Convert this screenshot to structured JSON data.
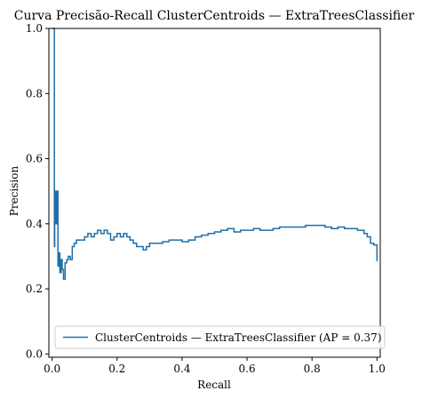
{
  "chart_data": {
    "type": "line",
    "title": "Curva Precisão-Recall ClusterCentroids — ExtraTreesClassifier",
    "xlabel": "Recall",
    "ylabel": "Precision",
    "xlim": [
      -0.01,
      1.01
    ],
    "ylim": [
      -0.01,
      1.0
    ],
    "xticks": [
      "0.0",
      "0.2",
      "0.4",
      "0.6",
      "0.8",
      "1.0"
    ],
    "yticks": [
      "0.0",
      "0.2",
      "0.4",
      "0.6",
      "0.8",
      "1.0"
    ],
    "xtick_values": [
      0.0,
      0.2,
      0.4,
      0.6,
      0.8,
      1.0
    ],
    "ytick_values": [
      0.0,
      0.2,
      0.4,
      0.6,
      0.8,
      1.0
    ],
    "grid": false,
    "legend_position": "lower center",
    "step": "post",
    "series": [
      {
        "name": "ClusterCentroids — ExtraTreesClassifier (AP = 0.37)",
        "color": "#1f6fa8",
        "x": [
          0.0,
          0.003,
          0.005,
          0.007,
          0.008,
          0.009,
          0.01,
          0.012,
          0.015,
          0.018,
          0.021,
          0.024,
          0.028,
          0.031,
          0.035,
          0.04,
          0.045,
          0.05,
          0.056,
          0.062,
          0.068,
          0.075,
          0.082,
          0.09,
          0.1,
          0.11,
          0.12,
          0.13,
          0.14,
          0.15,
          0.16,
          0.17,
          0.18,
          0.19,
          0.2,
          0.21,
          0.22,
          0.23,
          0.24,
          0.25,
          0.26,
          0.27,
          0.28,
          0.29,
          0.3,
          0.32,
          0.34,
          0.36,
          0.38,
          0.4,
          0.42,
          0.44,
          0.46,
          0.48,
          0.5,
          0.52,
          0.54,
          0.56,
          0.58,
          0.6,
          0.62,
          0.64,
          0.66,
          0.68,
          0.7,
          0.72,
          0.74,
          0.76,
          0.78,
          0.8,
          0.82,
          0.84,
          0.86,
          0.88,
          0.9,
          0.92,
          0.94,
          0.96,
          0.97,
          0.98,
          0.99,
          1.0
        ],
        "y": [
          1.0,
          1.0,
          1.0,
          0.33,
          0.4,
          0.5,
          0.5,
          0.4,
          0.5,
          0.27,
          0.31,
          0.25,
          0.29,
          0.26,
          0.23,
          0.28,
          0.29,
          0.3,
          0.29,
          0.33,
          0.34,
          0.35,
          0.35,
          0.35,
          0.36,
          0.37,
          0.36,
          0.37,
          0.38,
          0.37,
          0.38,
          0.37,
          0.35,
          0.36,
          0.37,
          0.36,
          0.37,
          0.36,
          0.35,
          0.34,
          0.33,
          0.33,
          0.32,
          0.33,
          0.34,
          0.34,
          0.345,
          0.35,
          0.35,
          0.345,
          0.35,
          0.36,
          0.365,
          0.37,
          0.375,
          0.38,
          0.385,
          0.375,
          0.38,
          0.38,
          0.385,
          0.38,
          0.38,
          0.385,
          0.39,
          0.39,
          0.39,
          0.39,
          0.395,
          0.395,
          0.395,
          0.39,
          0.385,
          0.39,
          0.385,
          0.385,
          0.38,
          0.37,
          0.36,
          0.34,
          0.335,
          0.285
        ]
      }
    ]
  }
}
